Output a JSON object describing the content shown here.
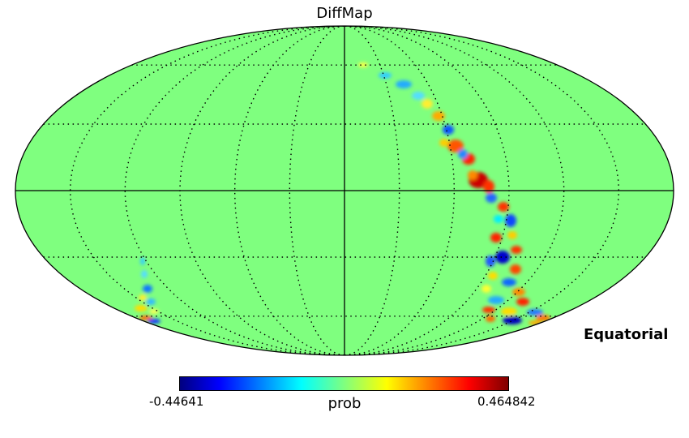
{
  "title": "DiffMap",
  "coord_label": "Equatorial",
  "colorbar": {
    "min_label": "-0.44641",
    "max_label": "0.464842",
    "unit_label": "prob",
    "colormap": "jet"
  },
  "colors": {
    "background_field": "#7fff7f",
    "graticule": "#000000"
  },
  "projection": "mollweide"
}
